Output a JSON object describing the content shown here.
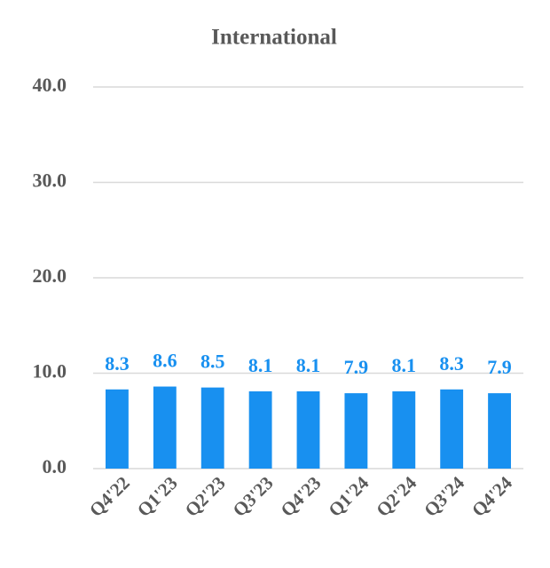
{
  "chart_data": {
    "type": "bar",
    "title": "International",
    "categories": [
      "Q4'22",
      "Q1'23",
      "Q2'23",
      "Q3'23",
      "Q4'23",
      "Q1'24",
      "Q2'24",
      "Q3'24",
      "Q4'24"
    ],
    "values": [
      8.3,
      8.6,
      8.5,
      8.1,
      8.1,
      7.9,
      8.1,
      8.3,
      7.9
    ],
    "color": "#1890f0",
    "ylim": [
      0,
      40
    ],
    "yticks": [
      {
        "value": 0,
        "label": "0.0"
      },
      {
        "value": 10,
        "label": "10.0"
      },
      {
        "value": 20,
        "label": "20.0"
      },
      {
        "value": 30,
        "label": "30.0"
      },
      {
        "value": 40,
        "label": "40.0"
      }
    ],
    "grid": true
  }
}
